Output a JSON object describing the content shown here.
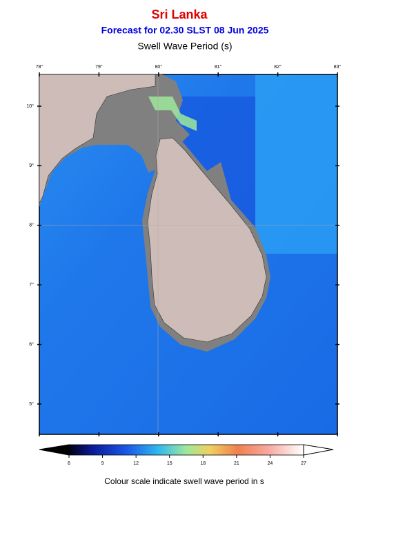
{
  "header": {
    "title": "Sri Lanka",
    "subtitle": "Forecast for  02.30 SLST 08 Jun 2025",
    "map_title": "Swell Wave Period (s)"
  },
  "map": {
    "lon_labels": [
      "78°",
      "79°",
      "80°",
      "81°",
      "82°",
      "83°"
    ],
    "lat_labels": [
      "10°",
      "9°",
      "8°",
      "7°",
      "6°",
      "5°"
    ]
  },
  "colorbar": {
    "ticks": [
      "6",
      "9",
      "12",
      "15",
      "18",
      "21",
      "24",
      "27"
    ],
    "caption": "Colour scale indicate swell wave period in s"
  }
}
